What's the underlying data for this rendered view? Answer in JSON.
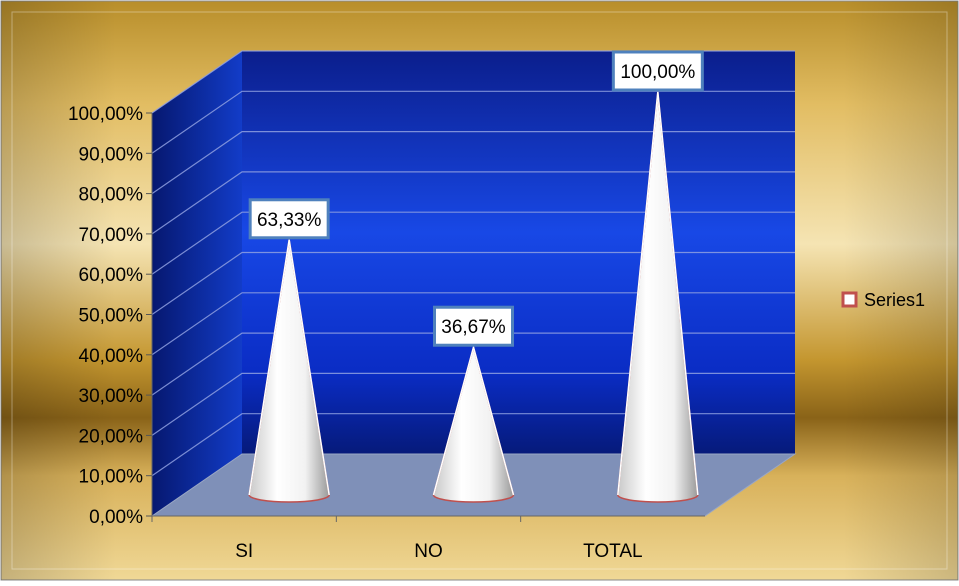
{
  "chart_data": {
    "type": "bar",
    "bar_shape": "cone",
    "categories": [
      "SI",
      "NO",
      "TOTAL"
    ],
    "series": [
      {
        "name": "Series1",
        "values": [
          63.33,
          36.67,
          100.0
        ]
      }
    ],
    "data_labels": [
      "63,33%",
      "36,67%",
      "100,00%"
    ],
    "yaxis": {
      "ticks": [
        "0,00%",
        "10,00%",
        "20,00%",
        "30,00%",
        "40,00%",
        "50,00%",
        "60,00%",
        "70,00%",
        "80,00%",
        "90,00%",
        "100,00%"
      ],
      "ylim": [
        0,
        100
      ]
    },
    "title": "",
    "xlabel": "",
    "ylabel": "",
    "grid": true,
    "legend": {
      "position": "right",
      "entries": [
        "Series1"
      ]
    },
    "colors": {
      "background": "#d4a93a",
      "wall": "#0a2fd6",
      "floor": "#7f90b8",
      "cone": "#ffffff",
      "cone_outline": "#c0504d",
      "label_border": "#4f81bd",
      "legend_marker": "#c0504d"
    }
  }
}
